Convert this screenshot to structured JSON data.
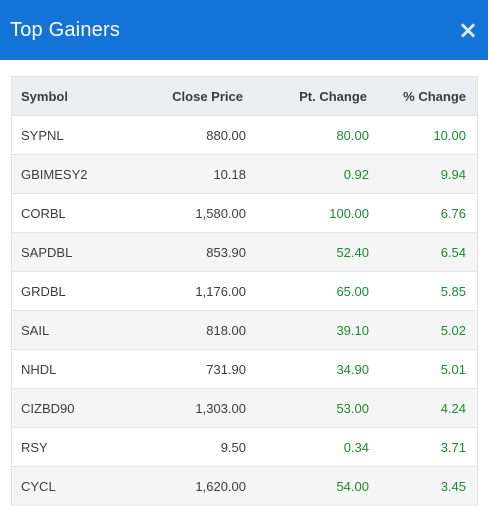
{
  "modal": {
    "title": "Top Gainers",
    "close_icon": "close-icon",
    "close_glyph": "×"
  },
  "table": {
    "columns": [
      "Symbol",
      "Close Price",
      "Pt. Change",
      "% Change"
    ],
    "rows": [
      {
        "symbol": "SYPNL",
        "close": "880.00",
        "pt_change": "80.00",
        "pct_change": "10.00"
      },
      {
        "symbol": "GBIMESY2",
        "close": "10.18",
        "pt_change": "0.92",
        "pct_change": "9.94"
      },
      {
        "symbol": "CORBL",
        "close": "1,580.00",
        "pt_change": "100.00",
        "pct_change": "6.76"
      },
      {
        "symbol": "SAPDBL",
        "close": "853.90",
        "pt_change": "52.40",
        "pct_change": "6.54"
      },
      {
        "symbol": "GRDBL",
        "close": "1,176.00",
        "pt_change": "65.00",
        "pct_change": "5.85"
      },
      {
        "symbol": "SAIL",
        "close": "818.00",
        "pt_change": "39.10",
        "pct_change": "5.02"
      },
      {
        "symbol": "NHDL",
        "close": "731.90",
        "pt_change": "34.90",
        "pct_change": "5.01"
      },
      {
        "symbol": "CIZBD90",
        "close": "1,303.00",
        "pt_change": "53.00",
        "pct_change": "4.24"
      },
      {
        "symbol": "RSY",
        "close": "9.50",
        "pt_change": "0.34",
        "pct_change": "3.71"
      },
      {
        "symbol": "CYCL",
        "close": "1,620.00",
        "pt_change": "54.00",
        "pct_change": "3.45"
      }
    ]
  },
  "colors": {
    "header_bg": "#1473d6",
    "positive": "#1e8a2e"
  }
}
